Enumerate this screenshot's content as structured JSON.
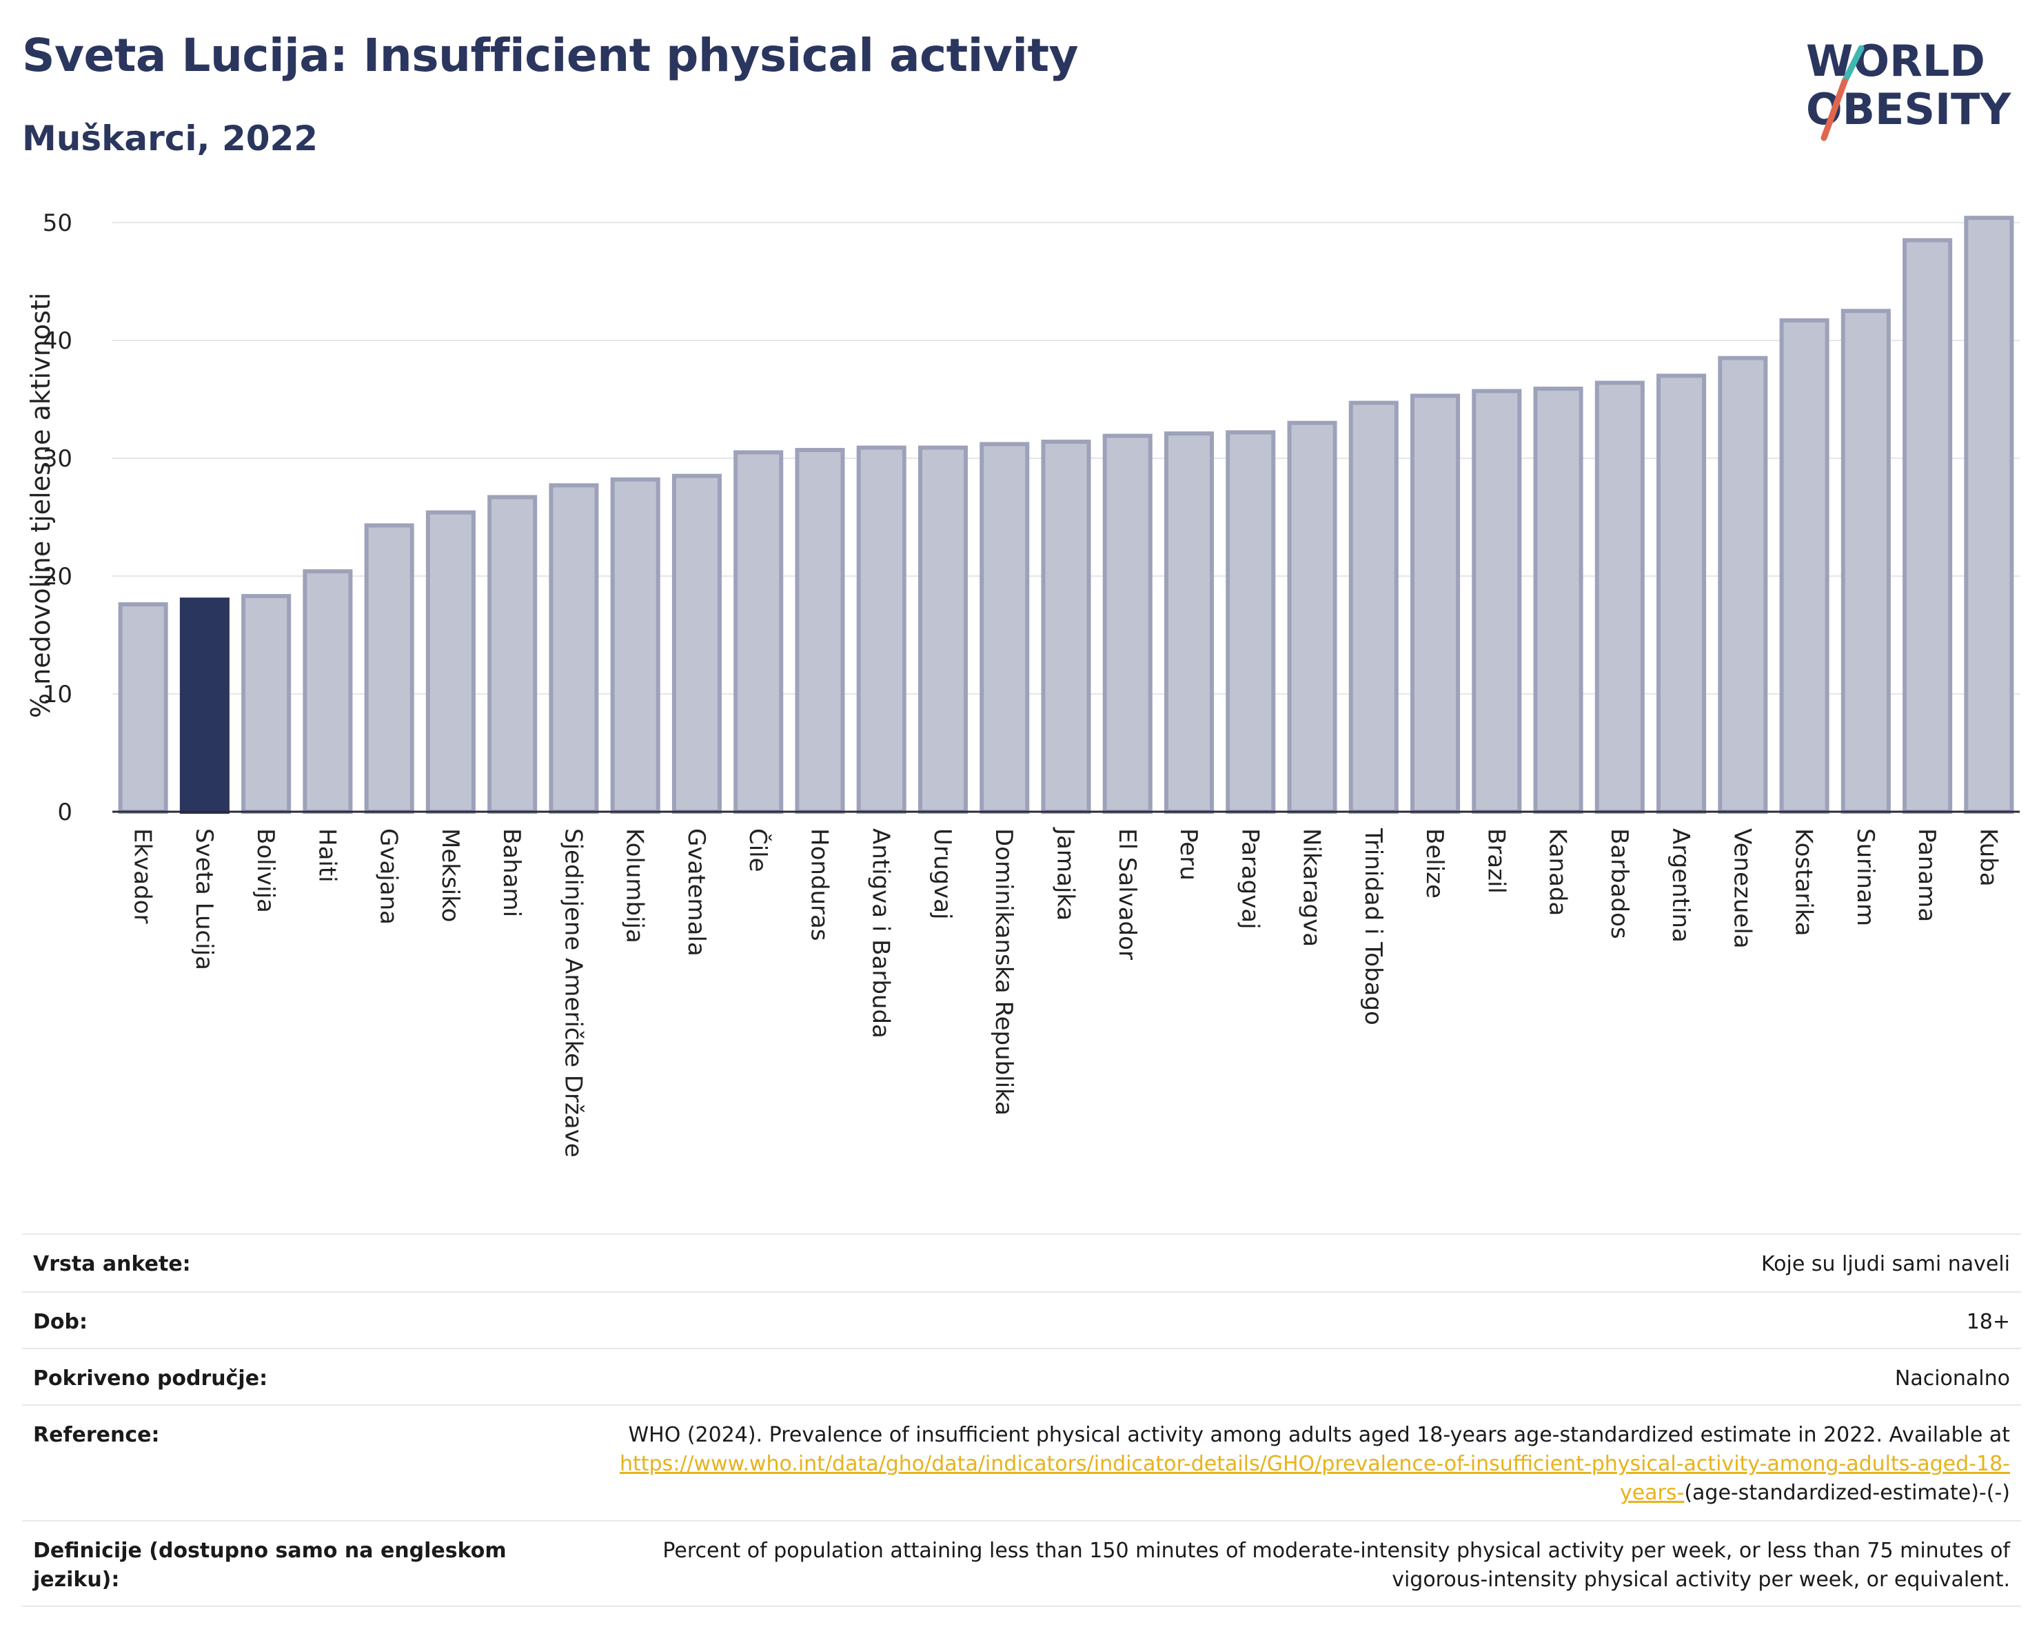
{
  "header": {
    "title": "Sveta Lucija: Insufficient physical activity",
    "subtitle": "Muškarci, 2022"
  },
  "logo": {
    "line1": "WORLD",
    "line2": "OBESITY"
  },
  "colors": {
    "highlight": "#2b365f",
    "bar": "#c0c4d2",
    "bar_edge": "#9da2ba",
    "title": "#2b365f",
    "link": "#e8b21a"
  },
  "chart_data": {
    "type": "bar",
    "ylabel": "% nedovoljne tjelesne aktivnosti",
    "ylim": [
      0,
      52
    ],
    "yticks": [
      0,
      10,
      20,
      30,
      40,
      50
    ],
    "grid": true,
    "highlight": "Sveta Lucija",
    "categories": [
      "Ekvador",
      "Sveta Lucija",
      "Bolivija",
      "Haiti",
      "Gvajana",
      "Meksiko",
      "Bahami",
      "Sjedinjene Američke Države",
      "Kolumbija",
      "Gvatemala",
      "Čile",
      "Honduras",
      "Antigva i Barbuda",
      "Urugvaj",
      "Dominikanska Republika",
      "Jamajka",
      "El Salvador",
      "Peru",
      "Paragvaj",
      "Nikaragva",
      "Trinidad i Tobago",
      "Belize",
      "Brazil",
      "Kanada",
      "Barbados",
      "Argentina",
      "Venezuela",
      "Kostarika",
      "Surinam",
      "Panama",
      "Kuba"
    ],
    "values": [
      17.6,
      18.0,
      18.3,
      20.4,
      24.3,
      25.4,
      26.7,
      27.7,
      28.2,
      28.5,
      30.5,
      30.7,
      30.9,
      30.9,
      31.2,
      31.4,
      31.9,
      32.1,
      32.2,
      33.0,
      34.7,
      35.3,
      35.7,
      35.9,
      36.4,
      37.0,
      38.5,
      41.7,
      42.5,
      48.5,
      50.4
    ]
  },
  "info": {
    "survey_label": "Vrsta ankete:",
    "survey_value": "Koje su ljudi sami naveli",
    "age_label": "Dob:",
    "age_value": "18+",
    "coverage_label": "Pokriveno područje:",
    "coverage_value": "Nacionalno",
    "reference_label": "Reference:",
    "reference_text": "WHO (2024). Prevalence of insufficient physical activity among adults aged 18-years age-standardized estimate in 2022. Available at ",
    "reference_link": "https://www.who.int/data/gho/data/indicators/indicator-details/GHO/prevalence-of-insufficient-physical-activity-among-adults-aged-18-years-",
    "reference_tail": "(age-standardized-estimate)-(-)",
    "definition_label": "Definicije (dostupno samo na engleskom jeziku):",
    "definition_value": "Percent of population attaining less than 150 minutes of moderate-intensity physical activity per week, or less than 75 minutes of vigorous-intensity physical activity per week, or equivalent."
  }
}
